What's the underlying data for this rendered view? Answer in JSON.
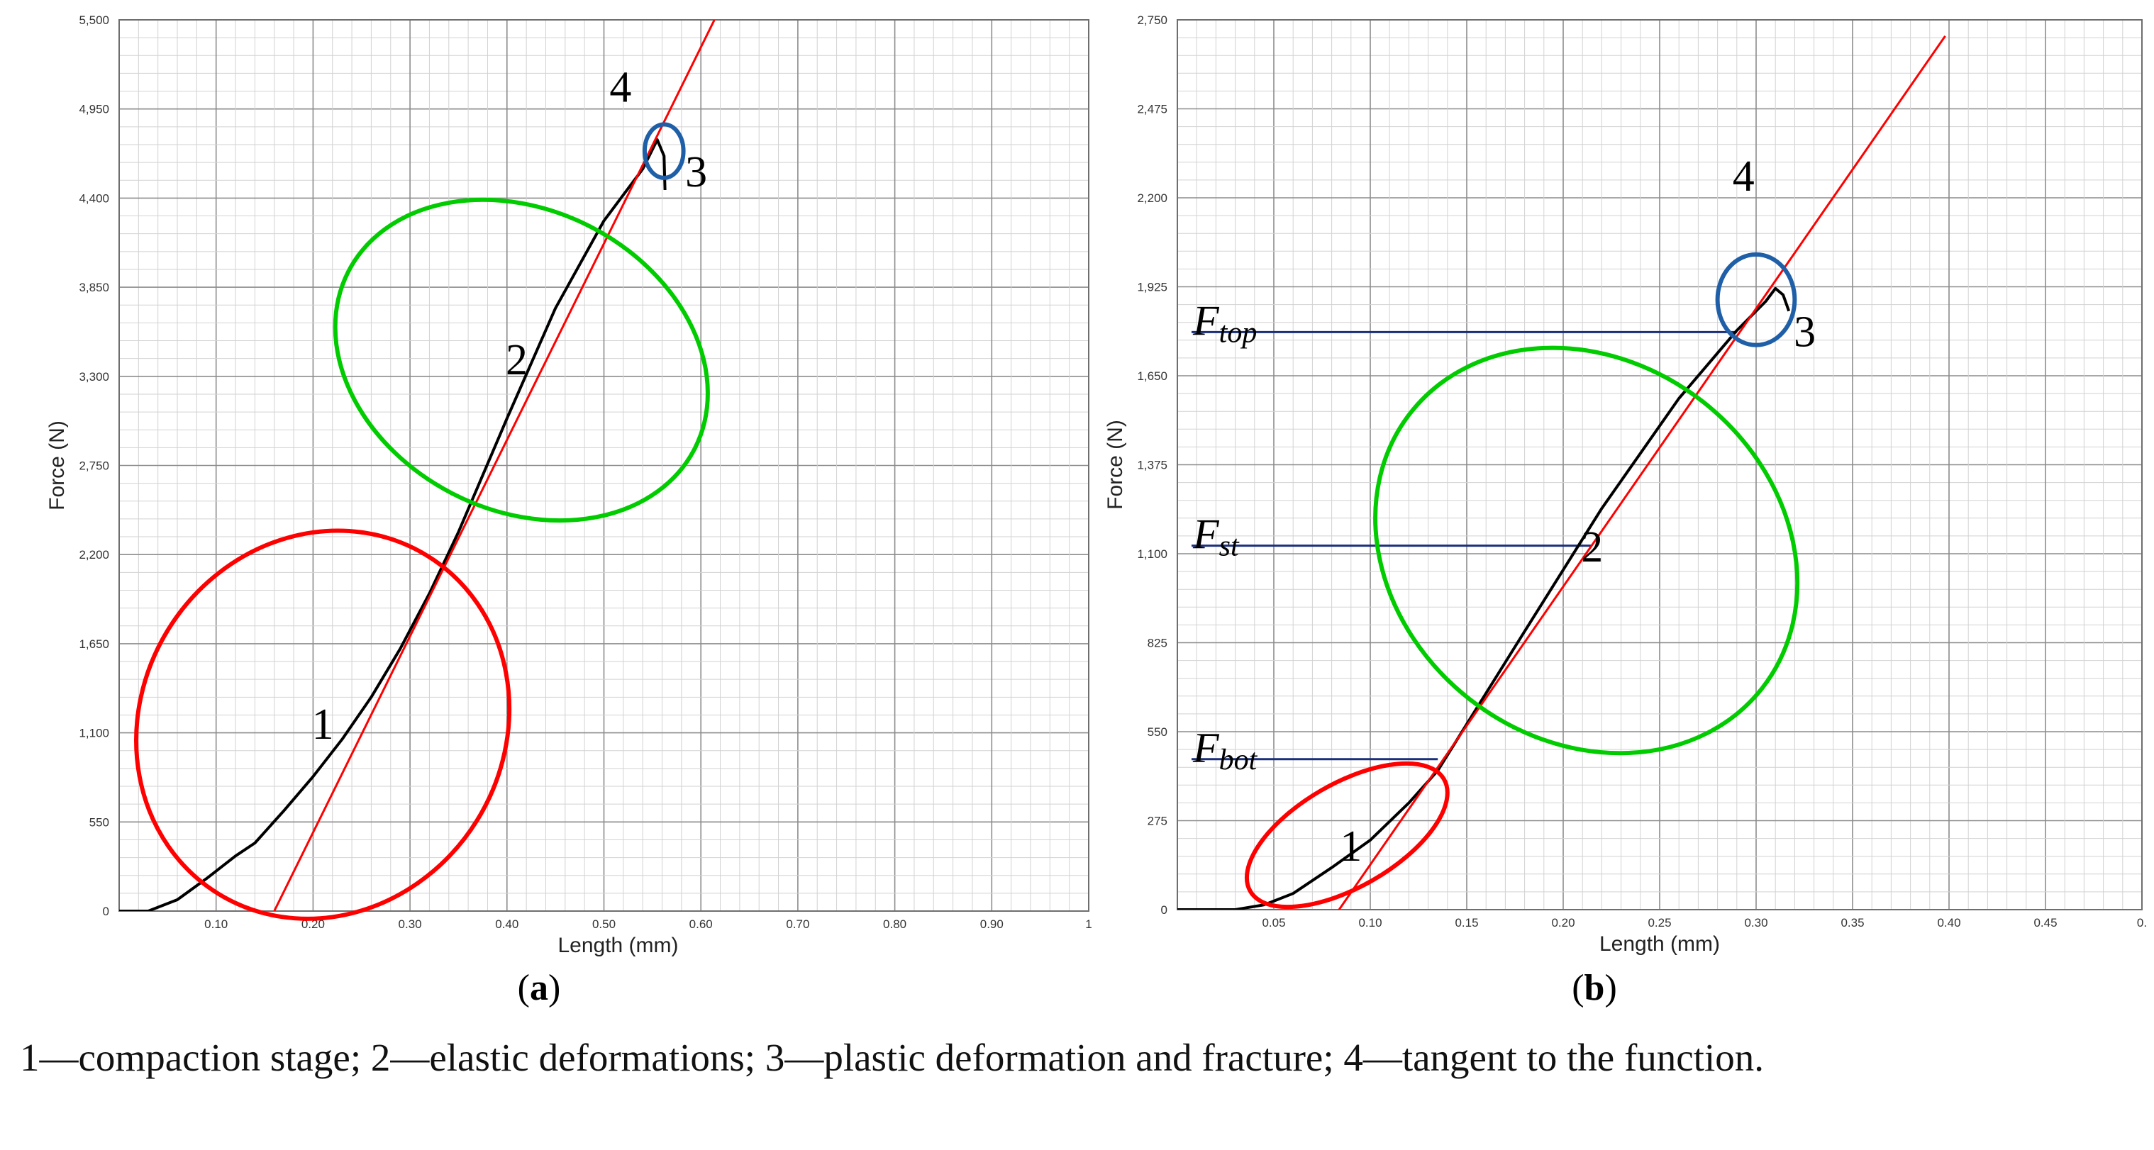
{
  "chart_data": [
    {
      "type": "line",
      "panel_label": "a",
      "xlabel": "Length (mm)",
      "ylabel": "Force (N)",
      "xlim": [
        0,
        1
      ],
      "ylim": [
        0,
        5500
      ],
      "x_ticks": [
        "",
        "0.10",
        "0.20",
        "0.30",
        "0.40",
        "0.50",
        "0.60",
        "0.70",
        "0.80",
        "0.90",
        "1"
      ],
      "y_ticks": [
        "0",
        "550",
        "1,100",
        "1,650",
        "2,200",
        "2,750",
        "3,300",
        "3,850",
        "4,400",
        "4,950",
        "5,500"
      ],
      "grid": true,
      "series": [
        {
          "color": "#000000",
          "points": [
            [
              0,
              0
            ],
            [
              0.03,
              0
            ],
            [
              0.06,
              70
            ],
            [
              0.09,
              200
            ],
            [
              0.12,
              340
            ],
            [
              0.14,
              420
            ],
            [
              0.17,
              620
            ],
            [
              0.2,
              830
            ],
            [
              0.23,
              1060
            ],
            [
              0.26,
              1320
            ],
            [
              0.29,
              1620
            ],
            [
              0.32,
              1960
            ],
            [
              0.35,
              2340
            ],
            [
              0.4,
              3040
            ],
            [
              0.45,
              3720
            ],
            [
              0.5,
              4260
            ],
            [
              0.54,
              4580
            ],
            [
              0.555,
              4760
            ],
            [
              0.562,
              4660
            ],
            [
              0.563,
              4450
            ]
          ]
        },
        {
          "color": "#ff0000",
          "points": [
            [
              0.16,
              0
            ],
            [
              0.614,
              5500
            ]
          ]
        }
      ],
      "annotations": [
        {
          "text": "1",
          "color": "#ff0000",
          "x": 0.21,
          "y": 1150
        },
        {
          "text": "2",
          "color": "#00cc00",
          "x": 0.41,
          "y": 3400
        },
        {
          "text": "3",
          "color": "#1f5fa8",
          "x": 0.555,
          "y": 4690
        },
        {
          "text": "4",
          "color": "#ff0000",
          "x": 0.55,
          "y": 4950
        }
      ],
      "regions": [
        {
          "label": "1",
          "color": "#ff0000",
          "cx": 0.21,
          "cy": 1150,
          "rx": 0.205,
          "ry": 1120,
          "rotate": -58
        },
        {
          "label": "2",
          "color": "#00cc00",
          "cx": 0.415,
          "cy": 3400,
          "rx": 0.155,
          "ry": 1200,
          "rotate": -63
        },
        {
          "label": "3",
          "color": "#1f5fa8",
          "cx": 0.562,
          "cy": 4690,
          "rx": 0.02,
          "ry": 165,
          "rotate": 0
        }
      ]
    },
    {
      "type": "line",
      "panel_label": "b",
      "xlabel": "Length (mm)",
      "ylabel": "Force (N)",
      "xlim": [
        0,
        0.5
      ],
      "ylim": [
        0,
        2750
      ],
      "x_ticks": [
        "",
        "0.05",
        "0.10",
        "0.15",
        "0.20",
        "0.25",
        "0.30",
        "0.35",
        "0.40",
        "0.45",
        "0."
      ],
      "y_ticks": [
        "0",
        "275",
        "550",
        "825",
        "1,100",
        "1,375",
        "1,650",
        "1,925",
        "2,200",
        "2,475",
        "2,750"
      ],
      "grid": true,
      "series": [
        {
          "color": "#000000",
          "points": [
            [
              0,
              0
            ],
            [
              0.03,
              0
            ],
            [
              0.045,
              15
            ],
            [
              0.06,
              50
            ],
            [
              0.08,
              130
            ],
            [
              0.1,
              215
            ],
            [
              0.12,
              330
            ],
            [
              0.135,
              430
            ],
            [
              0.18,
              860
            ],
            [
              0.22,
              1240
            ],
            [
              0.26,
              1580
            ],
            [
              0.29,
              1790
            ],
            [
              0.305,
              1880
            ],
            [
              0.31,
              1920
            ],
            [
              0.314,
              1900
            ],
            [
              0.317,
              1850
            ]
          ]
        },
        {
          "color": "#ff0000",
          "points": [
            [
              0.078,
              -50
            ],
            [
              0.398,
              2700
            ]
          ]
        }
      ],
      "reference_lines": [
        {
          "label": "F",
          "subscript": "top",
          "y": 1785,
          "x_end": 0.29
        },
        {
          "label": "F",
          "subscript": "st",
          "y": 1125,
          "x_end": 0.215
        },
        {
          "label": "F",
          "subscript": "bot",
          "y": 465,
          "x_end": 0.135
        }
      ],
      "annotations": [
        {
          "text": "1",
          "color": "#ff0000",
          "x": 0.09,
          "y": 195
        },
        {
          "text": "2",
          "color": "#00cc00",
          "x": 0.215,
          "y": 1120
        },
        {
          "text": "3",
          "color": "#1f5fa8",
          "x": 0.305,
          "y": 1850
        },
        {
          "text": "4",
          "color": "#ff0000",
          "x": 0.31,
          "y": 2200
        }
      ],
      "regions": [
        {
          "label": "1",
          "color": "#ff0000",
          "cx": 0.088,
          "cy": 230,
          "rx": 0.058,
          "ry": 160,
          "rotate": -30
        },
        {
          "label": "2",
          "color": "#00cc00",
          "cx": 0.212,
          "cy": 1110,
          "rx": 0.098,
          "ry": 690,
          "rotate": -52
        },
        {
          "label": "3",
          "color": "#1f5fa8",
          "cx": 0.3,
          "cy": 1885,
          "rx": 0.02,
          "ry": 140,
          "rotate": 0
        }
      ]
    }
  ],
  "caption": "1—compaction stage; 2—elastic deformations; 3—plastic deformation and fracture; 4—tangent to the function."
}
